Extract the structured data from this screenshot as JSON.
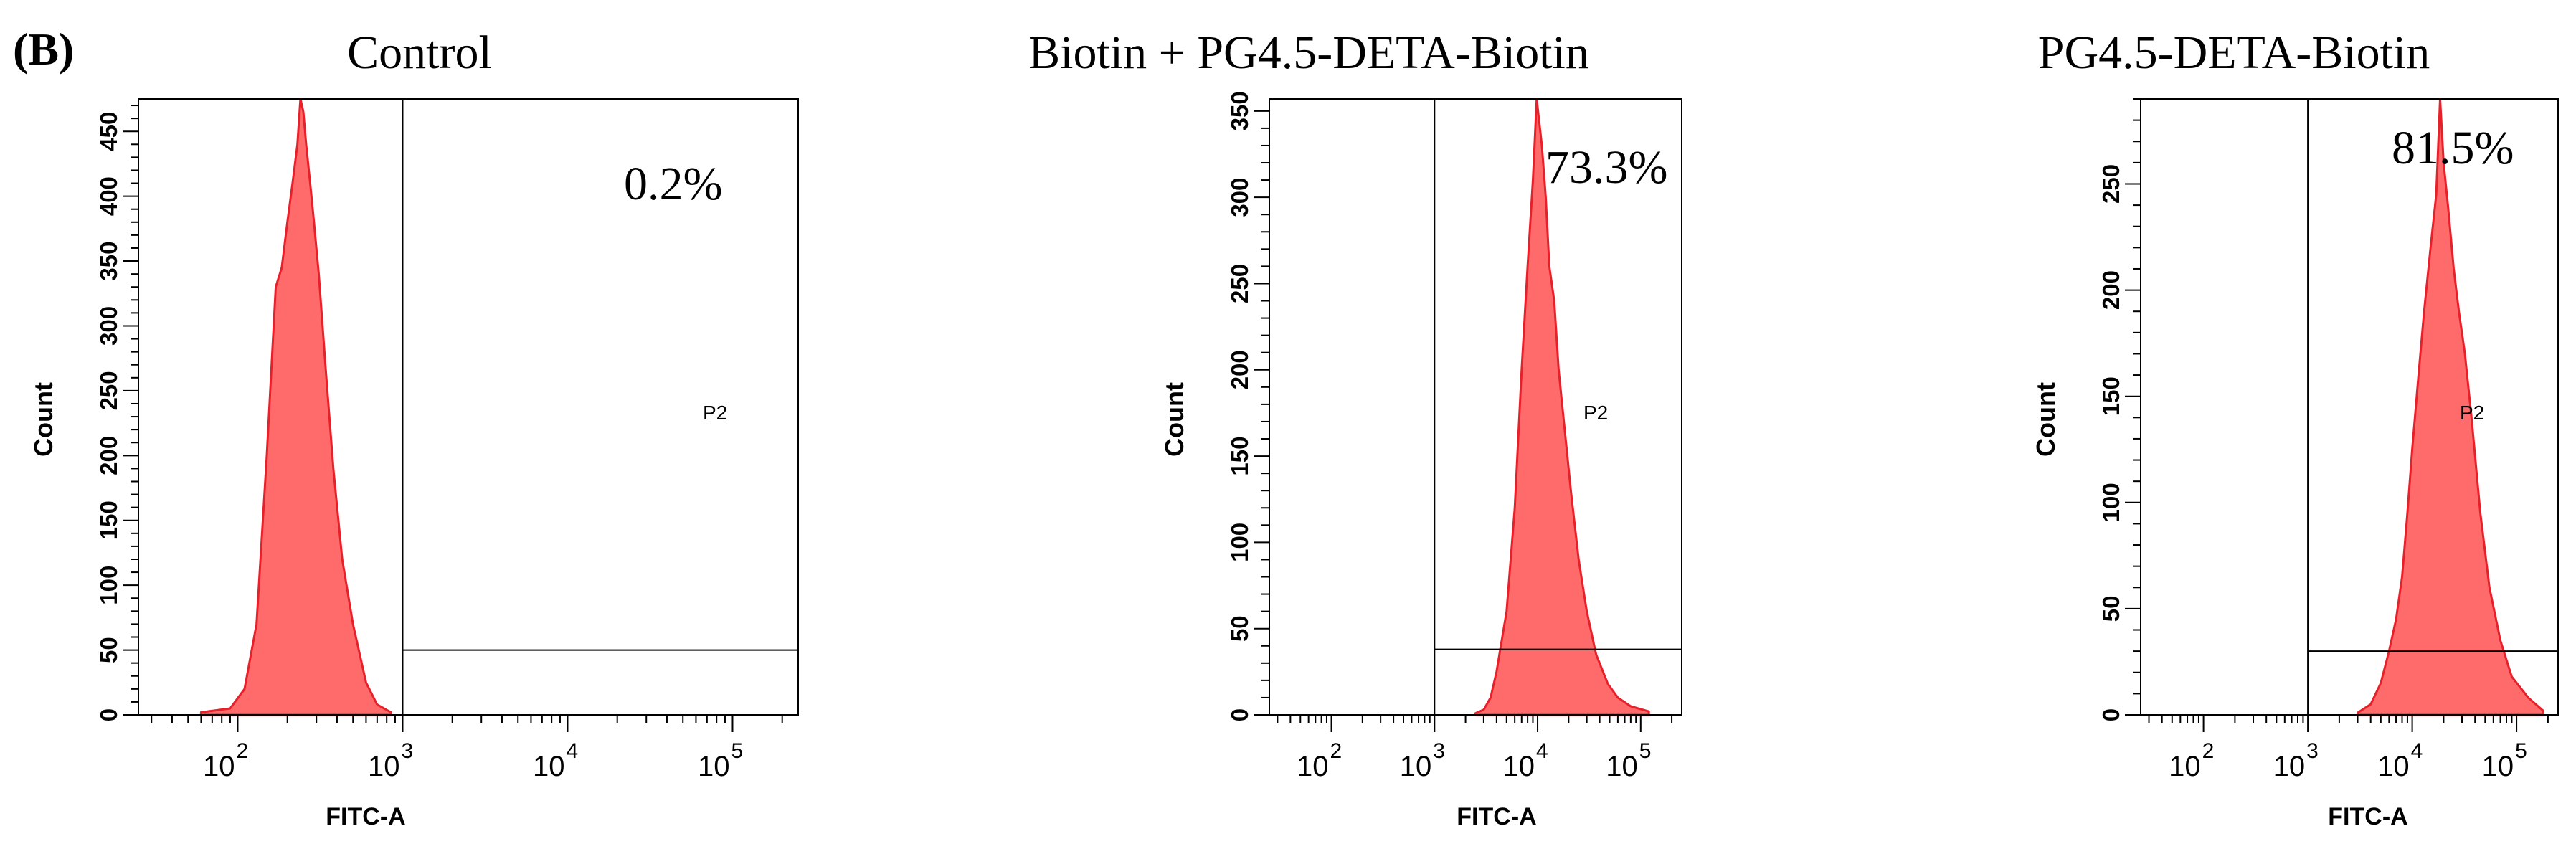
{
  "figure_label": "(B)",
  "colors": {
    "histogram_fill": "#FF6B6B",
    "histogram_edge": "#E8202A",
    "axes": "#000000",
    "gate": "#000000"
  },
  "chart_data": [
    {
      "type": "area",
      "title": "Control",
      "xlabel": "FITC-A",
      "ylabel": "Count",
      "x_scale": "log",
      "xlim": [
        25,
        250000
      ],
      "ylim": [
        0,
        475
      ],
      "y_ticks": [
        0,
        50,
        100,
        150,
        200,
        250,
        300,
        350,
        400,
        450
      ],
      "y_tick_labels": [
        "0",
        "50",
        "100",
        "150",
        "200",
        "250",
        "300",
        "350",
        "400",
        "450"
      ],
      "x_ticks": [
        100,
        1000,
        10000,
        100000
      ],
      "x_tick_labels": [
        {
          "base": "10",
          "exp": "2"
        },
        {
          "base": "10",
          "exp": "3"
        },
        {
          "base": "10",
          "exp": "4"
        },
        {
          "base": "10",
          "exp": "5"
        }
      ],
      "gate": {
        "name": "P2",
        "x_min": 1000,
        "y_threshold": 50,
        "percent_label": "0.2%"
      },
      "histogram": {
        "x": [
          60,
          90,
          110,
          130,
          150,
          170,
          185,
          200,
          215,
          230,
          240,
          250,
          260,
          275,
          290,
          310,
          340,
          380,
          430,
          500,
          600,
          700,
          850
        ],
        "y": [
          2,
          5,
          20,
          70,
          200,
          330,
          345,
          380,
          410,
          440,
          475,
          465,
          440,
          410,
          380,
          340,
          270,
          190,
          120,
          70,
          25,
          8,
          2
        ]
      }
    },
    {
      "type": "area",
      "title": "Biotin + PG4.5-DETA-Biotin",
      "xlabel": "FITC-A",
      "ylabel": "Count",
      "x_scale": "log",
      "xlim": [
        25,
        250000
      ],
      "ylim": [
        0,
        357
      ],
      "y_ticks": [
        0,
        50,
        100,
        150,
        200,
        250,
        300,
        350
      ],
      "y_tick_labels": [
        "0",
        "50",
        "100",
        "150",
        "200",
        "250",
        "300",
        "350"
      ],
      "x_ticks": [
        100,
        1000,
        10000,
        100000
      ],
      "x_tick_labels": [
        {
          "base": "10",
          "exp": "2"
        },
        {
          "base": "10",
          "exp": "3"
        },
        {
          "base": "10",
          "exp": "4"
        },
        {
          "base": "10",
          "exp": "5"
        }
      ],
      "gate": {
        "name": "P2",
        "x_min": 1000,
        "y_threshold": 38,
        "percent_label": "73.3%"
      },
      "histogram": {
        "x": [
          2500,
          3000,
          3500,
          4000,
          5000,
          6000,
          7000,
          8000,
          9000,
          9800,
          11000,
          12000,
          13000,
          14500,
          16000,
          18000,
          21000,
          25000,
          30000,
          37000,
          48000,
          60000,
          80000,
          120000
        ],
        "y": [
          1,
          3,
          10,
          25,
          60,
          120,
          200,
          260,
          310,
          357,
          330,
          300,
          260,
          240,
          200,
          170,
          130,
          90,
          60,
          35,
          18,
          10,
          5,
          2
        ]
      }
    },
    {
      "type": "area",
      "title": "PG4.5-DETA-Biotin",
      "xlabel": "FITC-A",
      "ylabel": "Count",
      "x_scale": "log",
      "xlim": [
        25,
        250000
      ],
      "ylim": [
        0,
        290
      ],
      "y_ticks": [
        0,
        50,
        100,
        150,
        200,
        250
      ],
      "y_tick_labels": [
        "0",
        "50",
        "100",
        "150",
        "200",
        "250"
      ],
      "x_ticks": [
        100,
        1000,
        10000,
        100000
      ],
      "x_tick_labels": [
        {
          "base": "10",
          "exp": "2"
        },
        {
          "base": "10",
          "exp": "3"
        },
        {
          "base": "10",
          "exp": "4"
        },
        {
          "base": "10",
          "exp": "5"
        }
      ],
      "gate": {
        "name": "P2",
        "x_min": 1000,
        "y_threshold": 30,
        "percent_label": "81.5%"
      },
      "histogram": {
        "x": [
          3000,
          4000,
          5000,
          6000,
          7000,
          8000,
          9000,
          10000,
          11500,
          13000,
          15000,
          17000,
          18500,
          20000,
          22000,
          25000,
          28000,
          32000,
          37000,
          45000,
          55000,
          70000,
          90000,
          130000,
          180000
        ],
        "y": [
          1,
          5,
          15,
          30,
          45,
          65,
          95,
          125,
          160,
          190,
          220,
          245,
          290,
          260,
          240,
          210,
          190,
          170,
          140,
          95,
          60,
          35,
          18,
          8,
          2
        ]
      }
    }
  ]
}
